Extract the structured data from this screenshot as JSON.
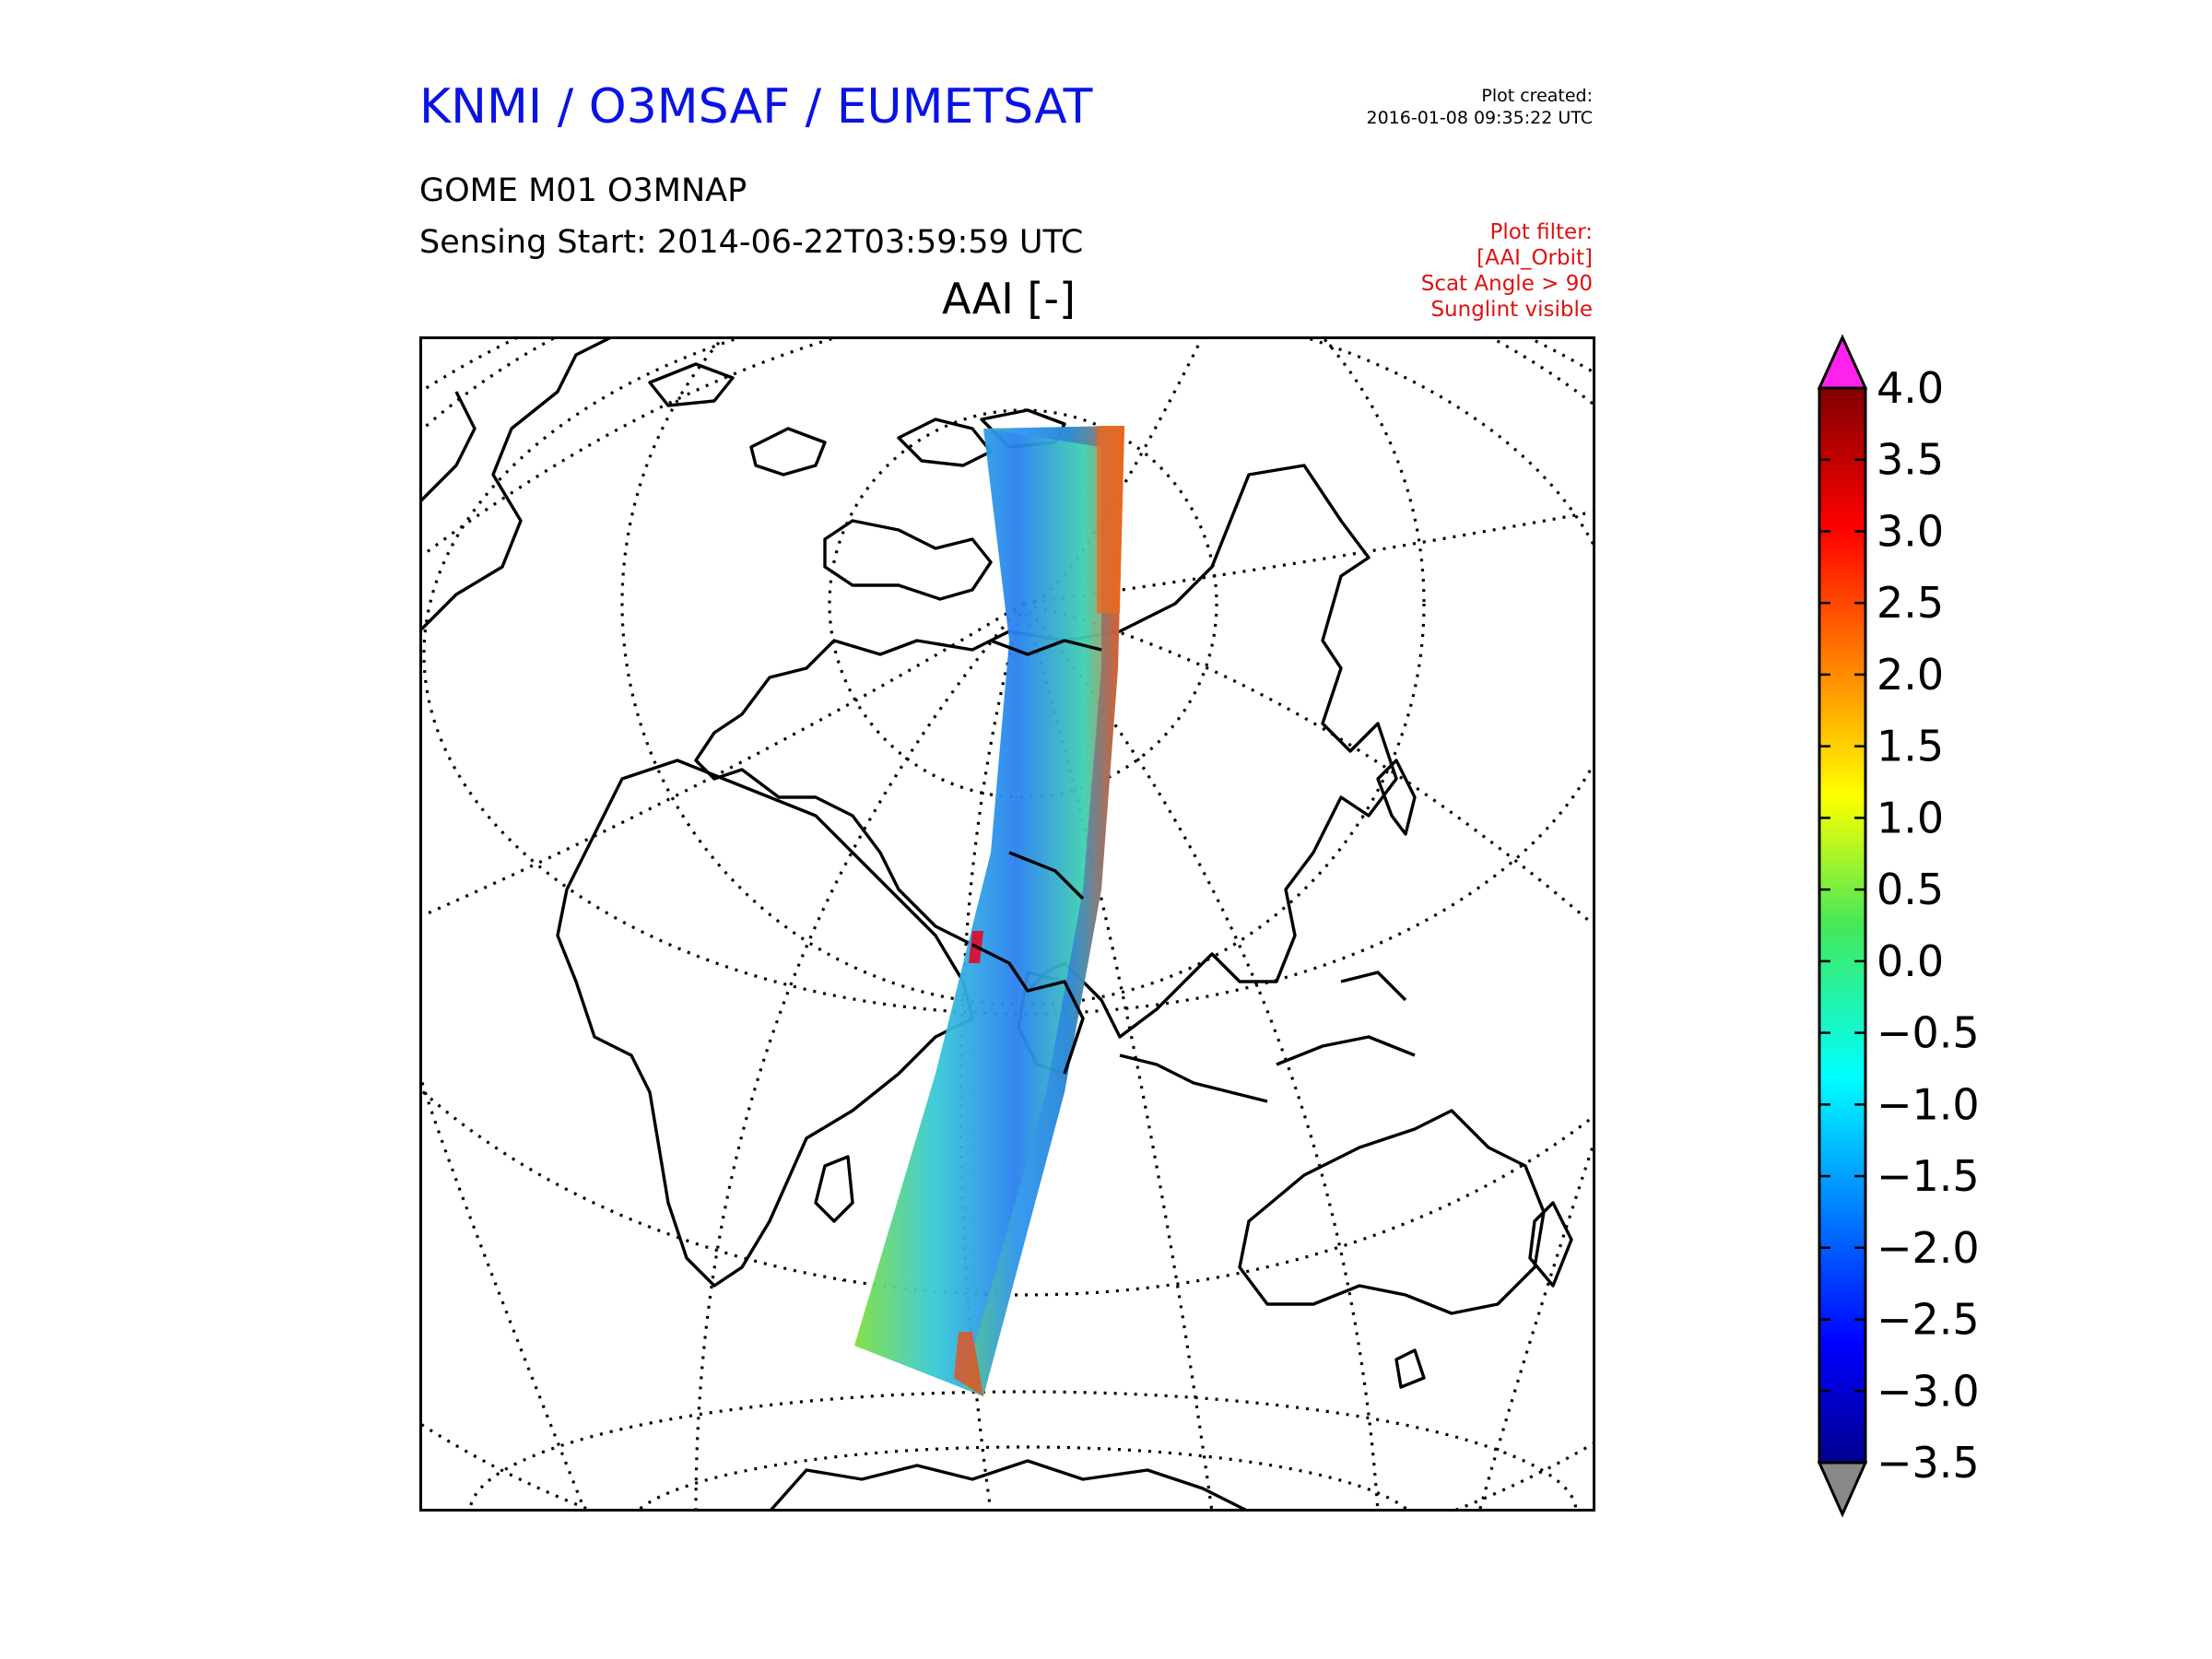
{
  "header": {
    "agency": "KNMI / O3MSAF / EUMETSAT",
    "product": "GOME M01 O3MNAP",
    "sensing_start": "Sensing Start: 2014-06-22T03:59:59 UTC",
    "plot_created_label": "Plot created:",
    "plot_created_value": "2016-01-08 09:35:22 UTC",
    "variable_title": "AAI [-]"
  },
  "filter": {
    "label": "Plot filter:",
    "lines": [
      "[AAI_Orbit]",
      "Scat Angle > 90",
      "Sunglint visible"
    ]
  },
  "colors": {
    "agency": "#0a12e6",
    "filter": "#e01010",
    "over": "#ff22ee",
    "under": "#888888"
  },
  "colorbar": {
    "min": -3.5,
    "max": 4.0,
    "ticks": [
      "4.0",
      "3.5",
      "3.0",
      "2.5",
      "2.0",
      "1.5",
      "1.0",
      "0.5",
      "0.0",
      "−0.5",
      "−1.0",
      "−1.5",
      "−2.0",
      "−2.5",
      "−3.0",
      "−3.5"
    ]
  },
  "map": {
    "projection": "azimuthal, graticule dotted",
    "swath": "GOME-2 orbit swath, AAI values -3.5 to 4.0"
  }
}
